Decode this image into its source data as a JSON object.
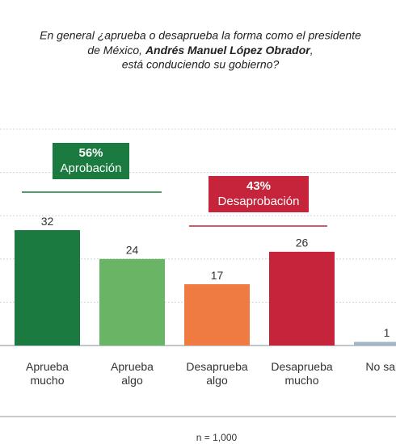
{
  "chart_data": {
    "type": "bar",
    "title_lines": [
      [
        "En general ¿aprueba o desaprueba la forma como el presidente"
      ],
      [
        "de México, ",
        "Andrés Manuel López Obrador",
        ","
      ],
      [
        "está conduciendo su gobierno?"
      ]
    ],
    "categories": [
      [
        "Aprueba",
        "mucho"
      ],
      [
        "Aprueba",
        "algo"
      ],
      [
        "Desaprueba",
        "algo"
      ],
      [
        "Desaprueba",
        "mucho"
      ],
      [
        "No sabe"
      ]
    ],
    "values": [
      32,
      24,
      17,
      26,
      1
    ],
    "colors": [
      "#1b7a3f",
      "#6ab565",
      "#f07b42",
      "#c6243b",
      "#a2b6c7"
    ],
    "ylim": [
      0,
      60
    ],
    "yticks": [
      0,
      12,
      24,
      36,
      48,
      60
    ],
    "grid": true,
    "annotations": [
      {
        "value": "56%",
        "label": "Aprobación",
        "color": "#1b7a3f"
      },
      {
        "value": "43%",
        "label": "Desaprobación",
        "color": "#c6243b"
      }
    ],
    "footnote": "n = 1,000"
  }
}
